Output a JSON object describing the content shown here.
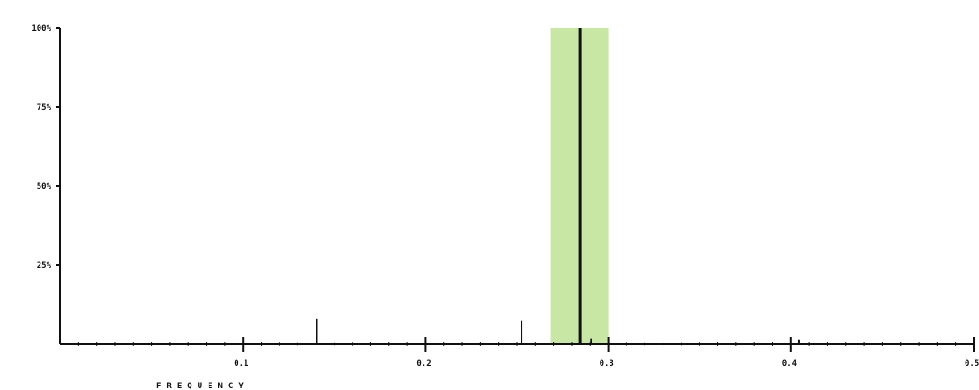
{
  "chart_data": {
    "type": "line",
    "title": "",
    "xlabel": "FREQUENCY",
    "ylabel": "",
    "xlim": [
      0,
      0.5
    ],
    "ylim": [
      0,
      100
    ],
    "grid": false,
    "x_ticks": [
      {
        "value": 0.1,
        "label": "0.1"
      },
      {
        "value": 0.2,
        "label": "0.2"
      },
      {
        "value": 0.3,
        "label": "0.3"
      },
      {
        "value": 0.4,
        "label": "0.4"
      },
      {
        "value": 0.5,
        "label": "0.5"
      }
    ],
    "y_ticks": [
      {
        "value": 25,
        "label": "25%"
      },
      {
        "value": 50,
        "label": "50%"
      },
      {
        "value": 75,
        "label": "75%"
      },
      {
        "value": 100,
        "label": "100%"
      }
    ],
    "highlight_band": {
      "x_start": 0.2685,
      "x_end": 0.3,
      "color": "#c8e6a4"
    },
    "series": [
      {
        "color": "#111111",
        "peaks": [
          {
            "x": 0.1405,
            "y": 8
          },
          {
            "x": 0.2525,
            "y": 7.5
          },
          {
            "x": 0.2845,
            "y": 100
          },
          {
            "x": 0.2905,
            "y": 1.8
          },
          {
            "x": 0.4045,
            "y": 1.5
          }
        ]
      }
    ]
  }
}
